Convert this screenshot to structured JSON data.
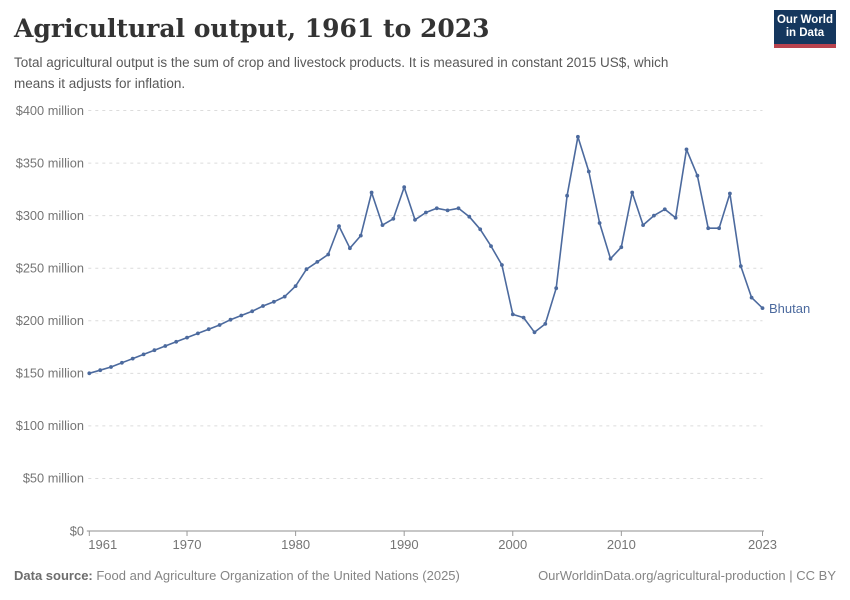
{
  "header": {
    "title": "Agricultural output, 1961 to 2023",
    "subtitle_line1": "Total agricultural output is the sum of crop and livestock products. It is measured in constant 2015 US$, which",
    "subtitle_line2": "means it adjusts for inflation.",
    "logo_line1": "Our World",
    "logo_line2": "in Data",
    "logo_navy": "#15375e",
    "logo_red": "#b9434e"
  },
  "chart_data": {
    "type": "line",
    "title": "Agricultural output, 1961 to 2023",
    "unit": "constant 2015 US$, millions",
    "grid": "horizontal dashed",
    "legend_position": "end-of-line label",
    "xlim": [
      1961,
      2023
    ],
    "ylim": [
      0,
      400
    ],
    "x": [
      1961,
      1962,
      1963,
      1964,
      1965,
      1966,
      1967,
      1968,
      1969,
      1970,
      1971,
      1972,
      1973,
      1974,
      1975,
      1976,
      1977,
      1978,
      1979,
      1980,
      1981,
      1982,
      1983,
      1984,
      1985,
      1986,
      1987,
      1988,
      1989,
      1990,
      1991,
      1992,
      1993,
      1994,
      1995,
      1996,
      1997,
      1998,
      1999,
      2000,
      2001,
      2002,
      2003,
      2004,
      2005,
      2006,
      2007,
      2008,
      2009,
      2010,
      2011,
      2012,
      2013,
      2014,
      2015,
      2016,
      2017,
      2018,
      2019,
      2020,
      2021,
      2022,
      2023
    ],
    "series": [
      {
        "name": "Bhutan",
        "color": "#4c6a9e",
        "values": [
          150,
          153,
          156,
          160,
          164,
          168,
          172,
          176,
          180,
          184,
          188,
          192,
          196,
          201,
          205,
          209,
          214,
          218,
          223,
          233,
          249,
          256,
          263,
          290,
          269,
          281,
          322,
          291,
          297,
          327,
          296,
          303,
          307,
          305,
          307,
          299,
          287,
          271,
          253,
          206,
          203,
          189,
          197,
          231,
          319,
          375,
          342,
          293,
          259,
          270,
          322,
          291,
          300,
          306,
          298,
          363,
          338,
          288,
          288,
          321,
          252,
          222,
          212
        ]
      }
    ],
    "x_ticks": [
      {
        "year": 1961,
        "label": "1961"
      },
      {
        "year": 1970,
        "label": "1970"
      },
      {
        "year": 1980,
        "label": "1980"
      },
      {
        "year": 1990,
        "label": "1990"
      },
      {
        "year": 2000,
        "label": "2000"
      },
      {
        "year": 2010,
        "label": "2010"
      },
      {
        "year": 2023,
        "label": "2023"
      }
    ],
    "y_ticks": [
      {
        "value": 0,
        "label": "$0"
      },
      {
        "value": 50,
        "label": "$50 million"
      },
      {
        "value": 100,
        "label": "$100 million"
      },
      {
        "value": 150,
        "label": "$150 million"
      },
      {
        "value": 200,
        "label": "$200 million"
      },
      {
        "value": 250,
        "label": "$250 million"
      },
      {
        "value": 300,
        "label": "$300 million"
      },
      {
        "value": 350,
        "label": "$350 million"
      },
      {
        "value": 400,
        "label": "$400 million"
      }
    ]
  },
  "footer": {
    "datasource_label": "Data source:",
    "datasource_text": " Food and Agriculture Organization of the United Nations (2025)",
    "right": "OurWorldinData.org/agricultural-production | CC BY"
  }
}
